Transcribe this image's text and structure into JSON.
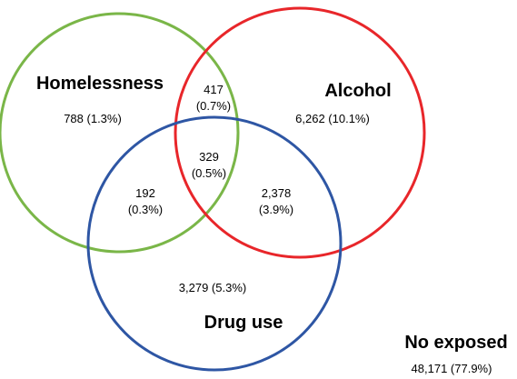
{
  "sets": {
    "homelessness": {
      "label": "Homelessness",
      "color": "#7ab648"
    },
    "alcohol": {
      "label": "Alcohol",
      "color": "#e8262a"
    },
    "drug_use": {
      "label": "Drug use",
      "color": "#2e56a4"
    }
  },
  "regions": {
    "homelessness_only": "788 (1.3%)",
    "alcohol_only": "6,262 (10.1%)",
    "drug_use_only": "3,279 (5.3%)",
    "homelessness_alcohol": {
      "count": "417",
      "pct": "(0.7%)"
    },
    "homelessness_drug_use": {
      "count": "192",
      "pct": "(0.3%)"
    },
    "alcohol_drug_use": {
      "count": "2,378",
      "pct": "(3.9%)"
    },
    "all_three": {
      "count": "329",
      "pct": "(0.5%)"
    }
  },
  "outside": {
    "label": "No exposed",
    "value": "48,171 (77.9%)"
  }
}
